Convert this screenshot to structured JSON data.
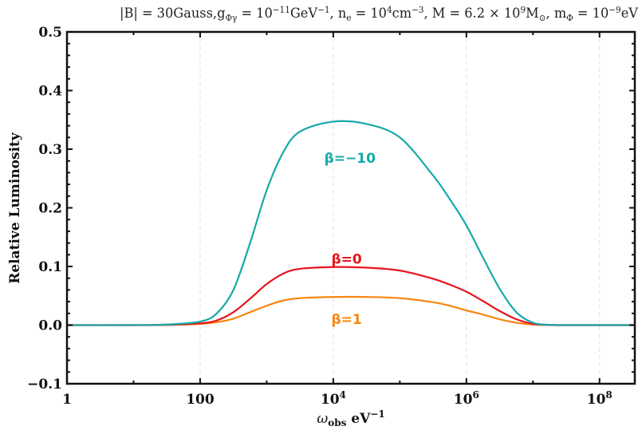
{
  "chart_data": {
    "type": "line",
    "title": "|B| = 30Gauss, g_{Φγ} = 10^{-11}GeV^{-1}, n_e = 10^4cm^{-3}, M = 6.2 × 10^9 M_⊙, m_Φ = 10^{-9}eV",
    "title_parts": {
      "B": "|B| = 30Gauss,",
      "g": "g",
      "g_sub": "Φγ",
      "g_val": " = 10",
      "g_exp": "−11",
      "g_unit": "GeV",
      "g_unit_exp": "−1",
      "ne": ", n",
      "ne_sub": "e",
      "ne_val": " = 10",
      "ne_exp": "4",
      "ne_unit": "cm",
      "ne_unit_exp": "−3",
      "M": ", M = 6.2 × 10",
      "M_exp": "9",
      "M_unit": "M",
      "M_sub": "⊙",
      "m": ", m",
      "m_sub": "Φ",
      "m_val": " = 10",
      "m_exp": "−9",
      "m_unit": "eV"
    },
    "xlabel": "ω_obs eV^-1",
    "xlabel_parts": {
      "omega": "ω",
      "sub": "obs",
      "unit": " eV",
      "exp": "−1"
    },
    "ylabel": "Relative Luminosity",
    "xscale": "log",
    "xlim": [
      1,
      316227766
    ],
    "ylim": [
      -0.1,
      0.5
    ],
    "x_ticks": [
      {
        "log10": 0,
        "label": "1",
        "base": "",
        "exp": ""
      },
      {
        "log10": 2,
        "label": "100",
        "base": "",
        "exp": ""
      },
      {
        "log10": 4,
        "label": "",
        "base": "10",
        "exp": "4"
      },
      {
        "log10": 6,
        "label": "",
        "base": "10",
        "exp": "6"
      },
      {
        "log10": 8,
        "label": "",
        "base": "10",
        "exp": "8"
      }
    ],
    "y_ticks": [
      {
        "value": 0.5,
        "label": "0.5"
      },
      {
        "value": 0.4,
        "label": "0.4"
      },
      {
        "value": 0.3,
        "label": "0.3"
      },
      {
        "value": 0.2,
        "label": "0.2"
      },
      {
        "value": 0.1,
        "label": "0.1"
      },
      {
        "value": 0.0,
        "label": "0.0"
      },
      {
        "value": -0.1,
        "label": "−0.1"
      }
    ],
    "grid": {
      "vertical_dashed_at_log10": [
        2,
        4,
        6,
        8
      ],
      "color": "#e0e0e0"
    },
    "legend": "inline labels",
    "x_log10": [
      0,
      1,
      1.5,
      2,
      2.25,
      2.5,
      2.75,
      3,
      3.25,
      3.5,
      4,
      4.5,
      5,
      5.5,
      5.75,
      6,
      6.25,
      6.5,
      6.75,
      7,
      7.25,
      7.5,
      8,
      8.53
    ],
    "series": [
      {
        "name": "β=−10",
        "color": "#17a9a9",
        "label_pos": {
          "log10": 4.25,
          "value": 0.285
        },
        "values": [
          0,
          0,
          0.001,
          0.006,
          0.02,
          0.06,
          0.14,
          0.23,
          0.295,
          0.33,
          0.347,
          0.343,
          0.32,
          0.255,
          0.215,
          0.17,
          0.115,
          0.062,
          0.022,
          0.004,
          0.0005,
          0,
          0,
          0
        ]
      },
      {
        "name": "β=0",
        "color": "#e8141c",
        "label_pos": {
          "log10": 4.2,
          "value": 0.113
        },
        "values": [
          0,
          0,
          0.0005,
          0.003,
          0.008,
          0.022,
          0.045,
          0.07,
          0.088,
          0.096,
          0.099,
          0.098,
          0.093,
          0.079,
          0.069,
          0.057,
          0.041,
          0.024,
          0.01,
          0.002,
          0.0003,
          0,
          0,
          0
        ]
      },
      {
        "name": "β=1",
        "color": "#f7860f",
        "label_pos": {
          "log10": 4.2,
          "value": 0.01
        },
        "values": [
          0,
          0,
          0.0003,
          0.002,
          0.005,
          0.011,
          0.022,
          0.033,
          0.042,
          0.046,
          0.048,
          0.048,
          0.046,
          0.039,
          0.033,
          0.025,
          0.018,
          0.01,
          0.004,
          0.001,
          0.0002,
          0,
          0,
          0
        ]
      }
    ]
  }
}
